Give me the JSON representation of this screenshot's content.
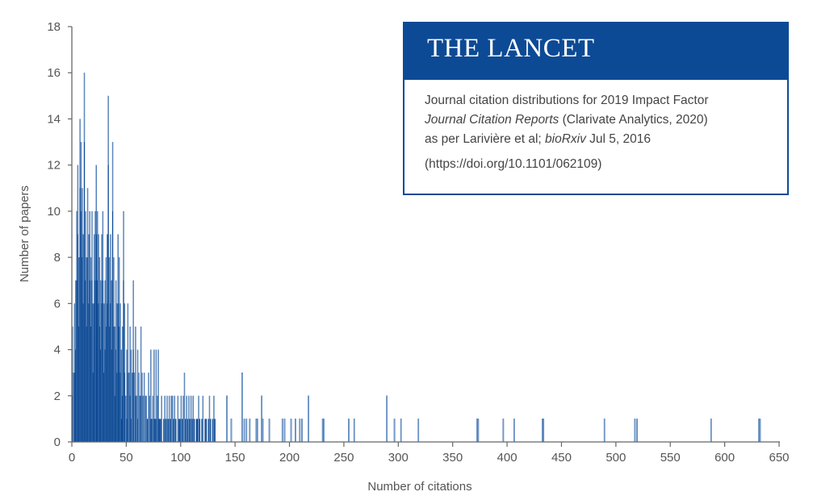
{
  "chart_data": {
    "type": "bar",
    "title": "",
    "xlabel": "Number of citations",
    "ylabel": "Number of papers",
    "xlim": [
      0,
      650
    ],
    "ylim": [
      0,
      18
    ],
    "xticks": [
      0,
      50,
      100,
      150,
      200,
      250,
      300,
      350,
      400,
      450,
      500,
      550,
      600,
      650
    ],
    "yticks": [
      0,
      2,
      4,
      6,
      8,
      10,
      12,
      14,
      16,
      18
    ],
    "grid": false,
    "bar_color": "#0d4a95",
    "bar_highlight_color": "#7fa3cf",
    "x": [
      0,
      1,
      2,
      3,
      4,
      5,
      6,
      7,
      8,
      9,
      10,
      11,
      12,
      13,
      14,
      15,
      16,
      17,
      18,
      19,
      20,
      21,
      22,
      23,
      24,
      25,
      26,
      27,
      28,
      29,
      30,
      31,
      32,
      33,
      34,
      35,
      36,
      37,
      38,
      39,
      40,
      41,
      42,
      43,
      44,
      45,
      46,
      47,
      48,
      49,
      50,
      51,
      52,
      53,
      54,
      55,
      56,
      57,
      58,
      59,
      60,
      61,
      62,
      63,
      64,
      65,
      66,
      67,
      68,
      69,
      70,
      71,
      72,
      73,
      74,
      75,
      76,
      77,
      78,
      79,
      80,
      81,
      82,
      83,
      84,
      85,
      86,
      87,
      88,
      89,
      90,
      91,
      92,
      93,
      94,
      95,
      96,
      97,
      98,
      99,
      100,
      101,
      102,
      103,
      104,
      105,
      106,
      107,
      108,
      109,
      110,
      111,
      112,
      113,
      114,
      115,
      116,
      117,
      118,
      119,
      120,
      121,
      122,
      123,
      124,
      125,
      126,
      127,
      128,
      129,
      130,
      131,
      132,
      142,
      146,
      156,
      158,
      160,
      163,
      169,
      170,
      174,
      175,
      181,
      193,
      195,
      201,
      205,
      209,
      211,
      217,
      230,
      231,
      254,
      259,
      289,
      296,
      302,
      318,
      372,
      373,
      396,
      406,
      432,
      433,
      489,
      517,
      519,
      587,
      631,
      632
    ],
    "values": [
      5,
      3,
      6,
      7,
      10,
      12,
      8,
      14,
      13,
      11,
      9,
      16,
      10,
      8,
      11,
      9,
      10,
      8,
      10,
      6,
      9,
      10,
      12,
      10,
      9,
      8,
      7,
      9,
      10,
      6,
      7,
      8,
      9,
      15,
      8,
      9,
      7,
      13,
      8,
      5,
      7,
      6,
      9,
      8,
      6,
      4,
      5,
      10,
      6,
      2,
      4,
      6,
      3,
      5,
      4,
      3,
      7,
      3,
      5,
      2,
      4,
      3,
      2,
      5,
      3,
      2,
      3,
      2,
      2,
      1,
      3,
      2,
      4,
      1,
      2,
      4,
      1,
      4,
      2,
      4,
      1,
      1,
      2,
      0,
      1,
      2,
      1,
      2,
      1,
      2,
      1,
      2,
      2,
      1,
      2,
      1,
      0,
      2,
      1,
      1,
      2,
      1,
      2,
      3,
      1,
      2,
      1,
      2,
      1,
      2,
      1,
      2,
      1,
      0,
      1,
      1,
      2,
      1,
      0,
      1,
      2,
      0,
      1,
      1,
      0,
      1,
      2,
      1,
      0,
      1,
      2,
      1,
      0,
      2,
      1,
      3,
      1,
      1,
      1,
      1,
      1,
      2,
      1,
      1,
      1,
      1,
      1,
      1,
      1,
      1,
      2,
      1,
      1,
      1,
      1,
      2,
      1,
      1,
      1,
      1,
      1,
      1,
      1,
      1,
      1,
      1,
      1,
      1,
      1,
      1,
      1
    ]
  },
  "infobox": {
    "brand": "THE LANCET",
    "line1": "Journal citation distributions for 2019 Impact Factor",
    "line2_italic": "Journal Citation Reports",
    "line2_rest": " (Clarivate Analytics, 2020)",
    "line3_start": "as per Larivière et al; ",
    "line3_italic": "bioRxiv",
    "line3_end": " Jul 5, 2016",
    "doi": "(https://doi.org/10.1101/062109)",
    "brand_color": "#0d4a95"
  }
}
